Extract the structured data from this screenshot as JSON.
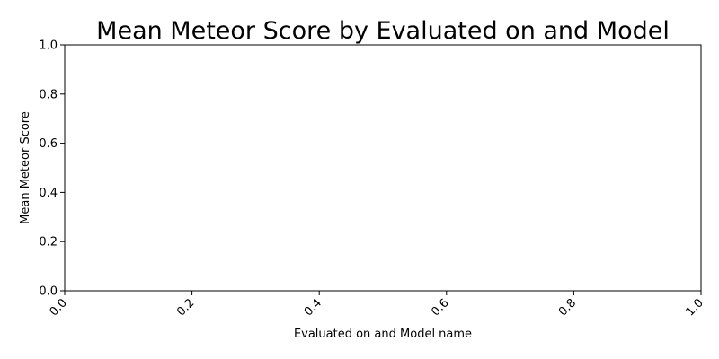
{
  "chart_data": {
    "type": "bar",
    "title": "Mean Meteor Score by Evaluated on and Model",
    "xlabel": "Evaluated on and Model name",
    "ylabel": "Mean Meteor Score",
    "categories": [],
    "values": [],
    "xlim": [
      0.0,
      1.0
    ],
    "ylim": [
      0.0,
      1.0
    ],
    "x_ticks": [
      "0.0",
      "0.2",
      "0.4",
      "0.6",
      "0.8",
      "1.0"
    ],
    "y_ticks": [
      "0.0",
      "0.2",
      "0.4",
      "0.6",
      "0.8",
      "1.0"
    ],
    "x_tick_rotation": 45,
    "grid": false,
    "legend": "none"
  }
}
